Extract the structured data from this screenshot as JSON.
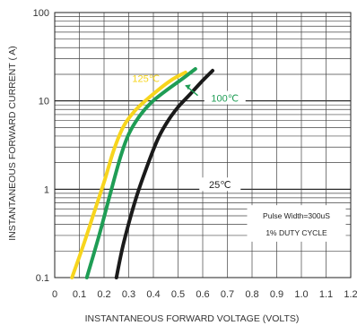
{
  "chart_data": {
    "type": "line",
    "xlabel": "INSTANTANEOUS FORWARD VOLTAGE (VOLTS)",
    "ylabel": "INSTANTANEOUS FORWARD CURRENT ( A)",
    "x_scale": "linear",
    "y_scale": "log",
    "xlim": [
      0,
      1.2
    ],
    "ylim": [
      0.1,
      100
    ],
    "x_tick_labels": [
      "0",
      "0.1",
      "0.2",
      "0.3",
      "0.4",
      "0.5",
      "0.6",
      "0.7",
      "0.8",
      "0.9",
      "1.0",
      "1.1",
      "1.2"
    ],
    "y_tick_labels": [
      "0.1",
      "1",
      "10",
      "100"
    ],
    "grid": true,
    "series": [
      {
        "name": "125℃",
        "color": "#f7d51d",
        "x": [
          0.07,
          0.12,
          0.16,
          0.2,
          0.24,
          0.28,
          0.33,
          0.4,
          0.47,
          0.53
        ],
        "y": [
          0.1,
          0.25,
          0.55,
          1.2,
          2.8,
          5.2,
          8,
          12,
          17,
          21
        ]
      },
      {
        "name": "100℃",
        "color": "#1f9d55",
        "x": [
          0.13,
          0.18,
          0.23,
          0.27,
          0.3,
          0.34,
          0.39,
          0.45,
          0.52,
          0.57
        ],
        "y": [
          0.1,
          0.3,
          1.0,
          2.5,
          4.2,
          6.5,
          9.5,
          13,
          18,
          23
        ]
      },
      {
        "name": "25℃",
        "color": "#1a1a1a",
        "x": [
          0.25,
          0.28,
          0.33,
          0.38,
          0.42,
          0.46,
          0.5,
          0.55,
          0.6,
          0.64
        ],
        "y": [
          0.1,
          0.25,
          0.8,
          2.0,
          3.8,
          6.0,
          8.5,
          12,
          17,
          22
        ]
      }
    ],
    "annotations": [
      "Pulse Width=300uS",
      "1% DUTY CYCLE"
    ]
  }
}
